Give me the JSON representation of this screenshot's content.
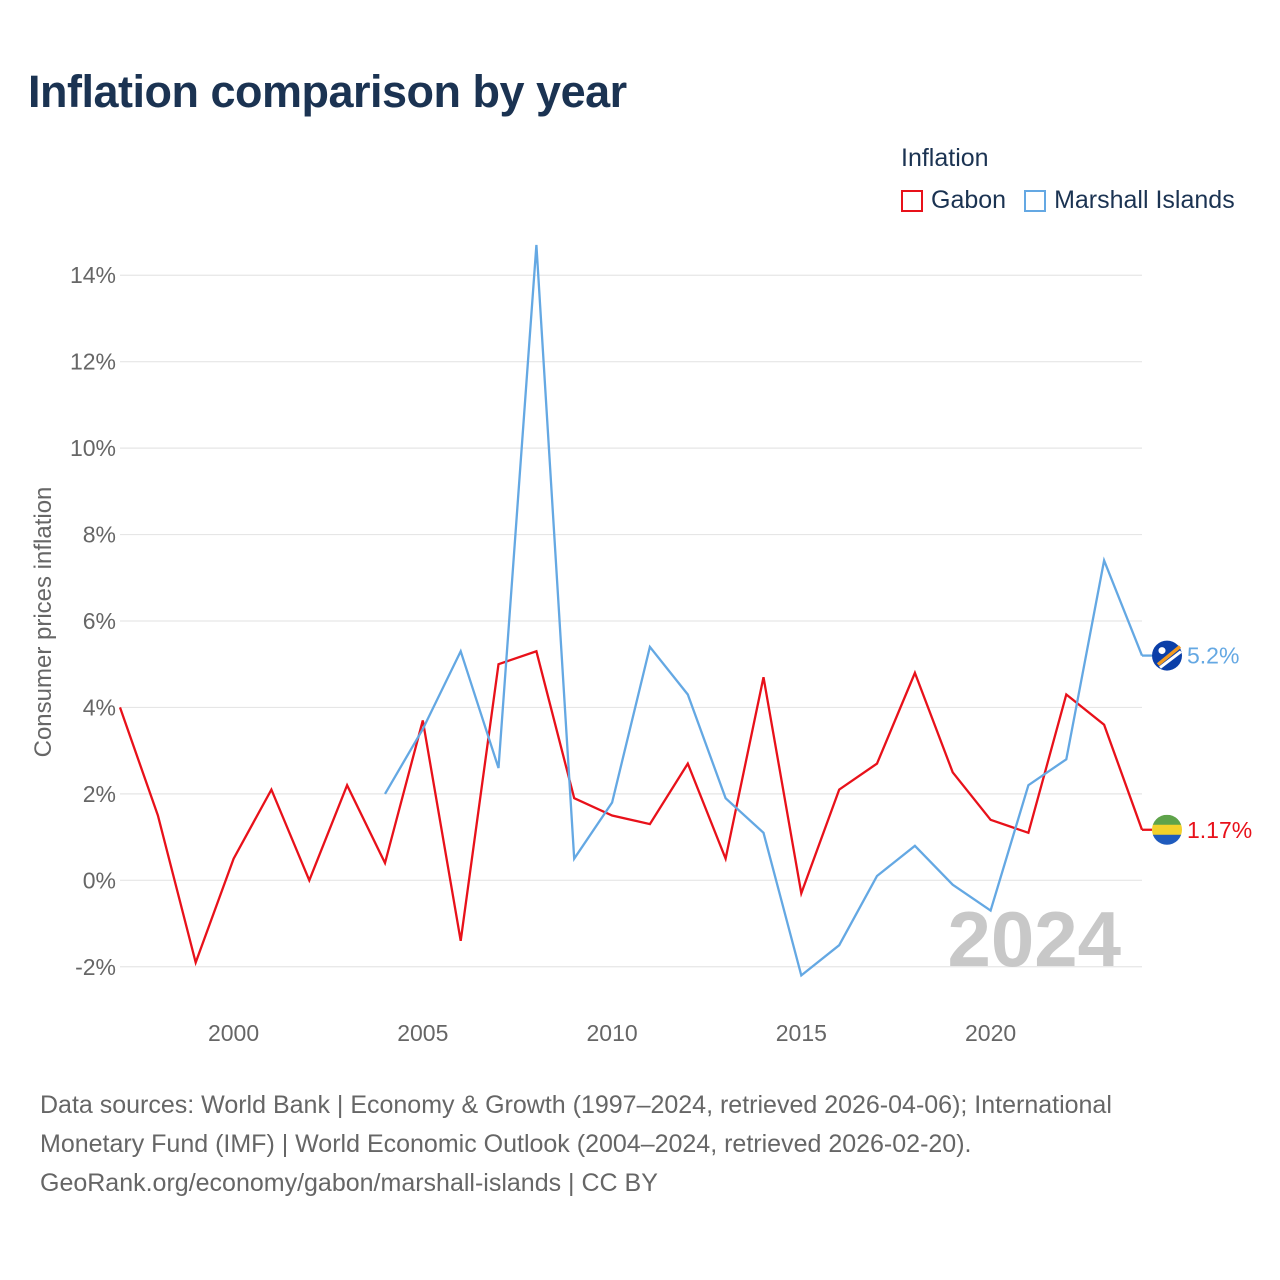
{
  "title": "Inflation comparison by year",
  "legend": {
    "title": "Inflation",
    "items": [
      {
        "label": "Gabon",
        "color": "#e8111a"
      },
      {
        "label": "Marshall Islands",
        "color": "#64a8e3"
      }
    ]
  },
  "chart_data": {
    "type": "line",
    "title": "Inflation comparison by year",
    "xlabel": "",
    "ylabel": "Consumer prices inflation",
    "xlim": [
      1997,
      2024
    ],
    "ylim": [
      -3,
      15
    ],
    "yticks": [
      -2,
      0,
      2,
      4,
      6,
      8,
      10,
      12,
      14
    ],
    "ytick_labels": [
      "-2%",
      "0%",
      "2%",
      "4%",
      "6%",
      "8%",
      "10%",
      "12%",
      "14%"
    ],
    "xticks": [
      2000,
      2005,
      2010,
      2015,
      2020
    ],
    "xtick_labels": [
      "2000",
      "2005",
      "2010",
      "2015",
      "2020"
    ],
    "grid": true,
    "year_watermark": "2024",
    "series": [
      {
        "name": "Gabon",
        "color": "#e8111a",
        "end_label": "1.17%",
        "x": [
          1997,
          1998,
          1999,
          2000,
          2001,
          2002,
          2003,
          2004,
          2005,
          2006,
          2007,
          2008,
          2009,
          2010,
          2011,
          2012,
          2013,
          2014,
          2015,
          2016,
          2017,
          2018,
          2019,
          2020,
          2021,
          2022,
          2023,
          2024
        ],
        "values": [
          4.0,
          1.5,
          -1.9,
          0.5,
          2.1,
          0.0,
          2.2,
          0.4,
          3.7,
          -1.4,
          5.0,
          5.3,
          1.9,
          1.5,
          1.3,
          2.7,
          0.5,
          4.7,
          -0.3,
          2.1,
          2.7,
          4.8,
          2.5,
          1.4,
          1.1,
          4.3,
          3.6,
          1.17
        ]
      },
      {
        "name": "Marshall Islands",
        "color": "#64a8e3",
        "end_label": "5.2%",
        "x": [
          2004,
          2005,
          2006,
          2007,
          2008,
          2009,
          2010,
          2011,
          2012,
          2013,
          2014,
          2015,
          2016,
          2017,
          2018,
          2019,
          2020,
          2021,
          2022,
          2023,
          2024
        ],
        "values": [
          2.0,
          3.5,
          5.3,
          2.6,
          14.7,
          0.5,
          1.8,
          5.4,
          4.3,
          1.9,
          1.1,
          -2.2,
          -1.5,
          0.1,
          0.8,
          -0.1,
          -0.7,
          2.2,
          2.8,
          7.4,
          5.2
        ]
      }
    ]
  },
  "sources": {
    "line1": "Data sources: World Bank | Economy & Growth (1997–2024, retrieved 2026-04-06); International",
    "line2": "Monetary Fund (IMF) | World Economic Outlook (2004–2024, retrieved 2026-02-20).",
    "line3": "GeoRank.org/economy/gabon/marshall-islands | CC BY"
  }
}
